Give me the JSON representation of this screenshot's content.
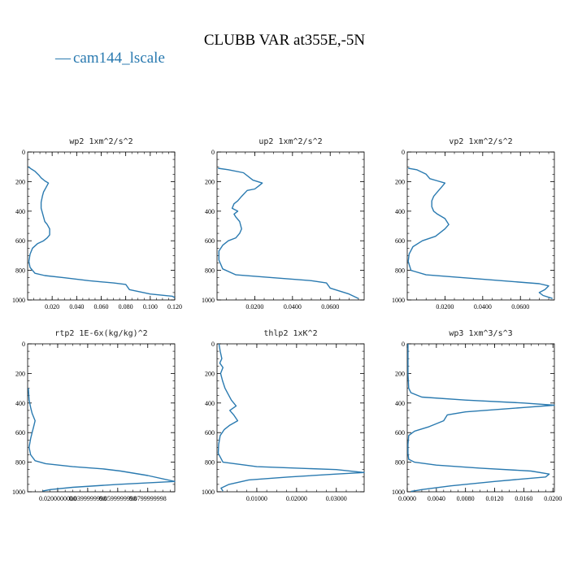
{
  "title": "CLUBB VAR at355E,-5N",
  "legend": {
    "label": "cam144_lscale",
    "symbol": "—",
    "color": "#2a7ab0"
  },
  "colors": {
    "line": "#2a7ab0",
    "axes": "#000000"
  },
  "chart_data": [
    {
      "type": "line",
      "title": "wp2   1xm^2/s^2",
      "xlim": [
        0,
        0.12
      ],
      "ylim": [
        1000,
        0
      ],
      "x_ticks": [
        "0.020",
        "0.040",
        "0.060",
        "0.080",
        "0.100",
        "0.120"
      ],
      "x_tick_values": [
        0.02,
        0.04,
        0.06,
        0.08,
        0.1,
        0.12
      ],
      "y_ticks": [
        "0",
        "200",
        "400",
        "600",
        "800",
        "1000"
      ],
      "y_tick_values": [
        0,
        200,
        400,
        600,
        800,
        1000
      ],
      "series": [
        {
          "name": "cam144_lscale",
          "x": [
            0.0005,
            0.003,
            0.006,
            0.009,
            0.011,
            0.014,
            0.017,
            0.015,
            0.013,
            0.012,
            0.011,
            0.011,
            0.012,
            0.013,
            0.014,
            0.016,
            0.018,
            0.018,
            0.016,
            0.013,
            0.008,
            0.004,
            0.002,
            0.001,
            0.002,
            0.006,
            0.014,
            0.03,
            0.05,
            0.07,
            0.08,
            0.083,
            0.1,
            0.118,
            0.12
          ],
          "y": [
            100,
            115,
            130,
            155,
            175,
            195,
            210,
            240,
            270,
            300,
            340,
            380,
            410,
            440,
            470,
            490,
            520,
            560,
            580,
            600,
            620,
            650,
            690,
            740,
            780,
            820,
            835,
            850,
            870,
            885,
            895,
            930,
            960,
            975,
            985
          ]
        }
      ]
    },
    {
      "type": "line",
      "title": "up2   1xm^2/s^2",
      "xlim": [
        0,
        0.078
      ],
      "ylim": [
        1000,
        0
      ],
      "x_ticks": [
        "0.0200",
        "0.0400",
        "0.0600"
      ],
      "x_tick_values": [
        0.02,
        0.04,
        0.06
      ],
      "y_ticks": [
        "0",
        "200",
        "400",
        "600",
        "800",
        "1000"
      ],
      "y_tick_values": [
        0,
        200,
        400,
        600,
        800,
        1000
      ],
      "series": [
        {
          "name": "cam144_lscale",
          "x": [
            0.0005,
            0.006,
            0.014,
            0.019,
            0.024,
            0.022,
            0.02,
            0.016,
            0.013,
            0.011,
            0.009,
            0.008,
            0.011,
            0.009,
            0.01,
            0.012,
            0.013,
            0.012,
            0.01,
            0.006,
            0.003,
            0.001,
            0.001,
            0.003,
            0.01,
            0.03,
            0.05,
            0.058,
            0.06,
            0.07,
            0.075
          ],
          "y": [
            110,
            120,
            140,
            190,
            210,
            230,
            250,
            260,
            300,
            330,
            350,
            380,
            400,
            420,
            440,
            470,
            520,
            550,
            580,
            600,
            630,
            670,
            730,
            790,
            830,
            850,
            870,
            885,
            920,
            960,
            990
          ]
        }
      ]
    },
    {
      "type": "line",
      "title": "vp2   1xm^2/s^2",
      "xlim": [
        0,
        0.078
      ],
      "ylim": [
        1000,
        0
      ],
      "x_ticks": [
        "0.0200",
        "0.0400",
        "0.0600"
      ],
      "x_tick_values": [
        0.02,
        0.04,
        0.06
      ],
      "y_ticks": [
        "0",
        "200",
        "400",
        "600",
        "800",
        "1000"
      ],
      "y_tick_values": [
        0,
        200,
        400,
        600,
        800,
        1000
      ],
      "series": [
        {
          "name": "cam144_lscale",
          "x": [
            0.0005,
            0.005,
            0.01,
            0.012,
            0.016,
            0.02,
            0.018,
            0.016,
            0.014,
            0.013,
            0.013,
            0.014,
            0.016,
            0.02,
            0.022,
            0.02,
            0.015,
            0.008,
            0.003,
            0.001,
            0.0005,
            0.002,
            0.01,
            0.03,
            0.05,
            0.07,
            0.075,
            0.073,
            0.07,
            0.072,
            0.077
          ],
          "y": [
            110,
            120,
            150,
            180,
            195,
            210,
            240,
            270,
            300,
            330,
            370,
            400,
            420,
            450,
            490,
            520,
            570,
            600,
            640,
            690,
            740,
            800,
            830,
            850,
            870,
            890,
            905,
            930,
            950,
            970,
            990
          ]
        }
      ]
    },
    {
      "type": "line",
      "title": "rtp2   1E-6x(kg/kg)^2",
      "xlim": [
        0,
        9.8e-09
      ],
      "ylim": [
        1000,
        0
      ],
      "x_ticks": [
        "0.0200000000",
        "0.0399999998",
        "0.0599999998",
        "0.0799999998"
      ],
      "x_tick_values": [
        2e-09,
        4e-09,
        6e-09,
        8e-09
      ],
      "y_ticks": [
        "0",
        "200",
        "400",
        "600",
        "800",
        "1000"
      ],
      "y_tick_values": [
        0,
        200,
        400,
        600,
        800,
        1000
      ],
      "series": [
        {
          "name": "cam144_lscale",
          "x": [
            5e-11,
            1e-10,
            2e-10,
            3e-10,
            5e-10,
            4e-10,
            3e-10,
            2e-10,
            1e-10,
            2e-10,
            5e-10,
            1.2e-09,
            3e-09,
            5e-09,
            6.2e-09,
            8e-09,
            9.8e-09,
            6e-09,
            3e-09,
            1.5e-09,
            1e-09
          ],
          "y": [
            300,
            380,
            430,
            470,
            520,
            560,
            600,
            640,
            700,
            750,
            790,
            810,
            830,
            845,
            860,
            890,
            930,
            950,
            970,
            985,
            995
          ]
        }
      ]
    },
    {
      "type": "line",
      "title": "thlp2   1xK^2",
      "xlim": [
        0,
        0.037
      ],
      "ylim": [
        1000,
        0
      ],
      "x_ticks": [
        "0.01000",
        "0.02000",
        "0.03000"
      ],
      "x_tick_values": [
        0.01,
        0.02,
        0.03
      ],
      "y_ticks": [
        "0",
        "200",
        "400",
        "600",
        "800",
        "1000"
      ],
      "y_tick_values": [
        0,
        200,
        400,
        600,
        800,
        1000
      ],
      "series": [
        {
          "name": "cam144_lscale",
          "x": [
            0.0005,
            0.0008,
            0.0012,
            0.0007,
            0.0015,
            0.0009,
            0.0014,
            0.002,
            0.0028,
            0.0036,
            0.0048,
            0.0032,
            0.0042,
            0.0052,
            0.0032,
            0.0018,
            0.0008,
            0.0004,
            0.0003,
            0.0015,
            0.01,
            0.03,
            0.037,
            0.03,
            0.018,
            0.008,
            0.003,
            0.001,
            0.0015
          ],
          "y": [
            0,
            50,
            100,
            130,
            160,
            200,
            250,
            300,
            340,
            380,
            420,
            450,
            480,
            520,
            550,
            580,
            620,
            680,
            740,
            800,
            830,
            850,
            870,
            880,
            900,
            920,
            950,
            975,
            995
          ]
        }
      ]
    },
    {
      "type": "line",
      "title": "wp3   1xm^3/s^3",
      "xlim": [
        0,
        0.0202
      ],
      "ylim": [
        1000,
        0
      ],
      "x_ticks": [
        "0.0000",
        "0.0040",
        "0.0080",
        "0.0120",
        "0.0160",
        "0.0200"
      ],
      "x_tick_values": [
        0.0,
        0.004,
        0.008,
        0.012,
        0.016,
        0.02
      ],
      "y_ticks": [
        "0",
        "200",
        "400",
        "600",
        "800",
        "1000"
      ],
      "y_tick_values": [
        0,
        200,
        400,
        600,
        800,
        1000
      ],
      "series": [
        {
          "name": "cam144_lscale",
          "x": [
            0.0001,
            0.0001,
            0.0001,
            0.0002,
            0.0005,
            0.002,
            0.008,
            0.016,
            0.0202,
            0.016,
            0.008,
            0.0055,
            0.005,
            0.003,
            0.001,
            0.0002,
            0.0001,
            0.0001,
            0.0002,
            0.001,
            0.004,
            0.01,
            0.017,
            0.0195,
            0.019,
            0.012,
            0.006,
            0.002,
            0.0005
          ],
          "y": [
            0,
            100,
            200,
            300,
            330,
            360,
            380,
            400,
            415,
            430,
            460,
            480,
            520,
            560,
            590,
            620,
            680,
            740,
            780,
            800,
            820,
            840,
            860,
            880,
            900,
            930,
            960,
            985,
            998
          ]
        }
      ]
    }
  ]
}
